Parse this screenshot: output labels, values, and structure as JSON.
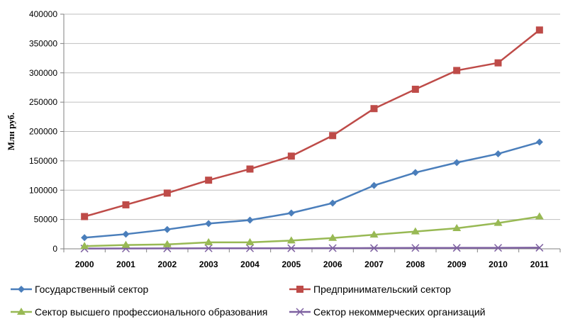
{
  "chart_data": {
    "type": "line",
    "title": "",
    "xlabel": "",
    "ylabel": "Млн руб.",
    "x": [
      "2000",
      "2001",
      "2002",
      "2003",
      "2004",
      "2005",
      "2006",
      "2007",
      "2008",
      "2009",
      "2010",
      "2011"
    ],
    "ylim": [
      0,
      400000
    ],
    "yticks": [
      "0",
      "50000",
      "100000",
      "150000",
      "200000",
      "250000",
      "300000",
      "350000",
      "400000"
    ],
    "grid": "horizontal",
    "legend_position": "bottom",
    "series": [
      {
        "name": "Государственный сектор",
        "color": "#4a7ebb",
        "marker": "diamond",
        "values": [
          19000,
          25000,
          33000,
          43000,
          49000,
          61000,
          78000,
          108000,
          130000,
          147000,
          162000,
          182000
        ]
      },
      {
        "name": "Предпринимательский сектор",
        "color": "#be4b48",
        "marker": "square",
        "values": [
          55000,
          75000,
          95000,
          117000,
          136000,
          158000,
          193000,
          239000,
          272000,
          304000,
          317000,
          373000
        ]
      },
      {
        "name": "Сектор высшего  профессионального образования",
        "color": "#98b954",
        "marker": "triangle",
        "values": [
          4500,
          6500,
          7500,
          11000,
          11000,
          14000,
          18500,
          24000,
          29500,
          35000,
          44000,
          55000
        ]
      },
      {
        "name": "Сектор некоммерческих организаций",
        "color": "#7d60a0",
        "marker": "x",
        "values": [
          500,
          600,
          700,
          900,
          900,
          1000,
          1200,
          1300,
          1500,
          1600,
          1700,
          1900
        ]
      }
    ]
  }
}
